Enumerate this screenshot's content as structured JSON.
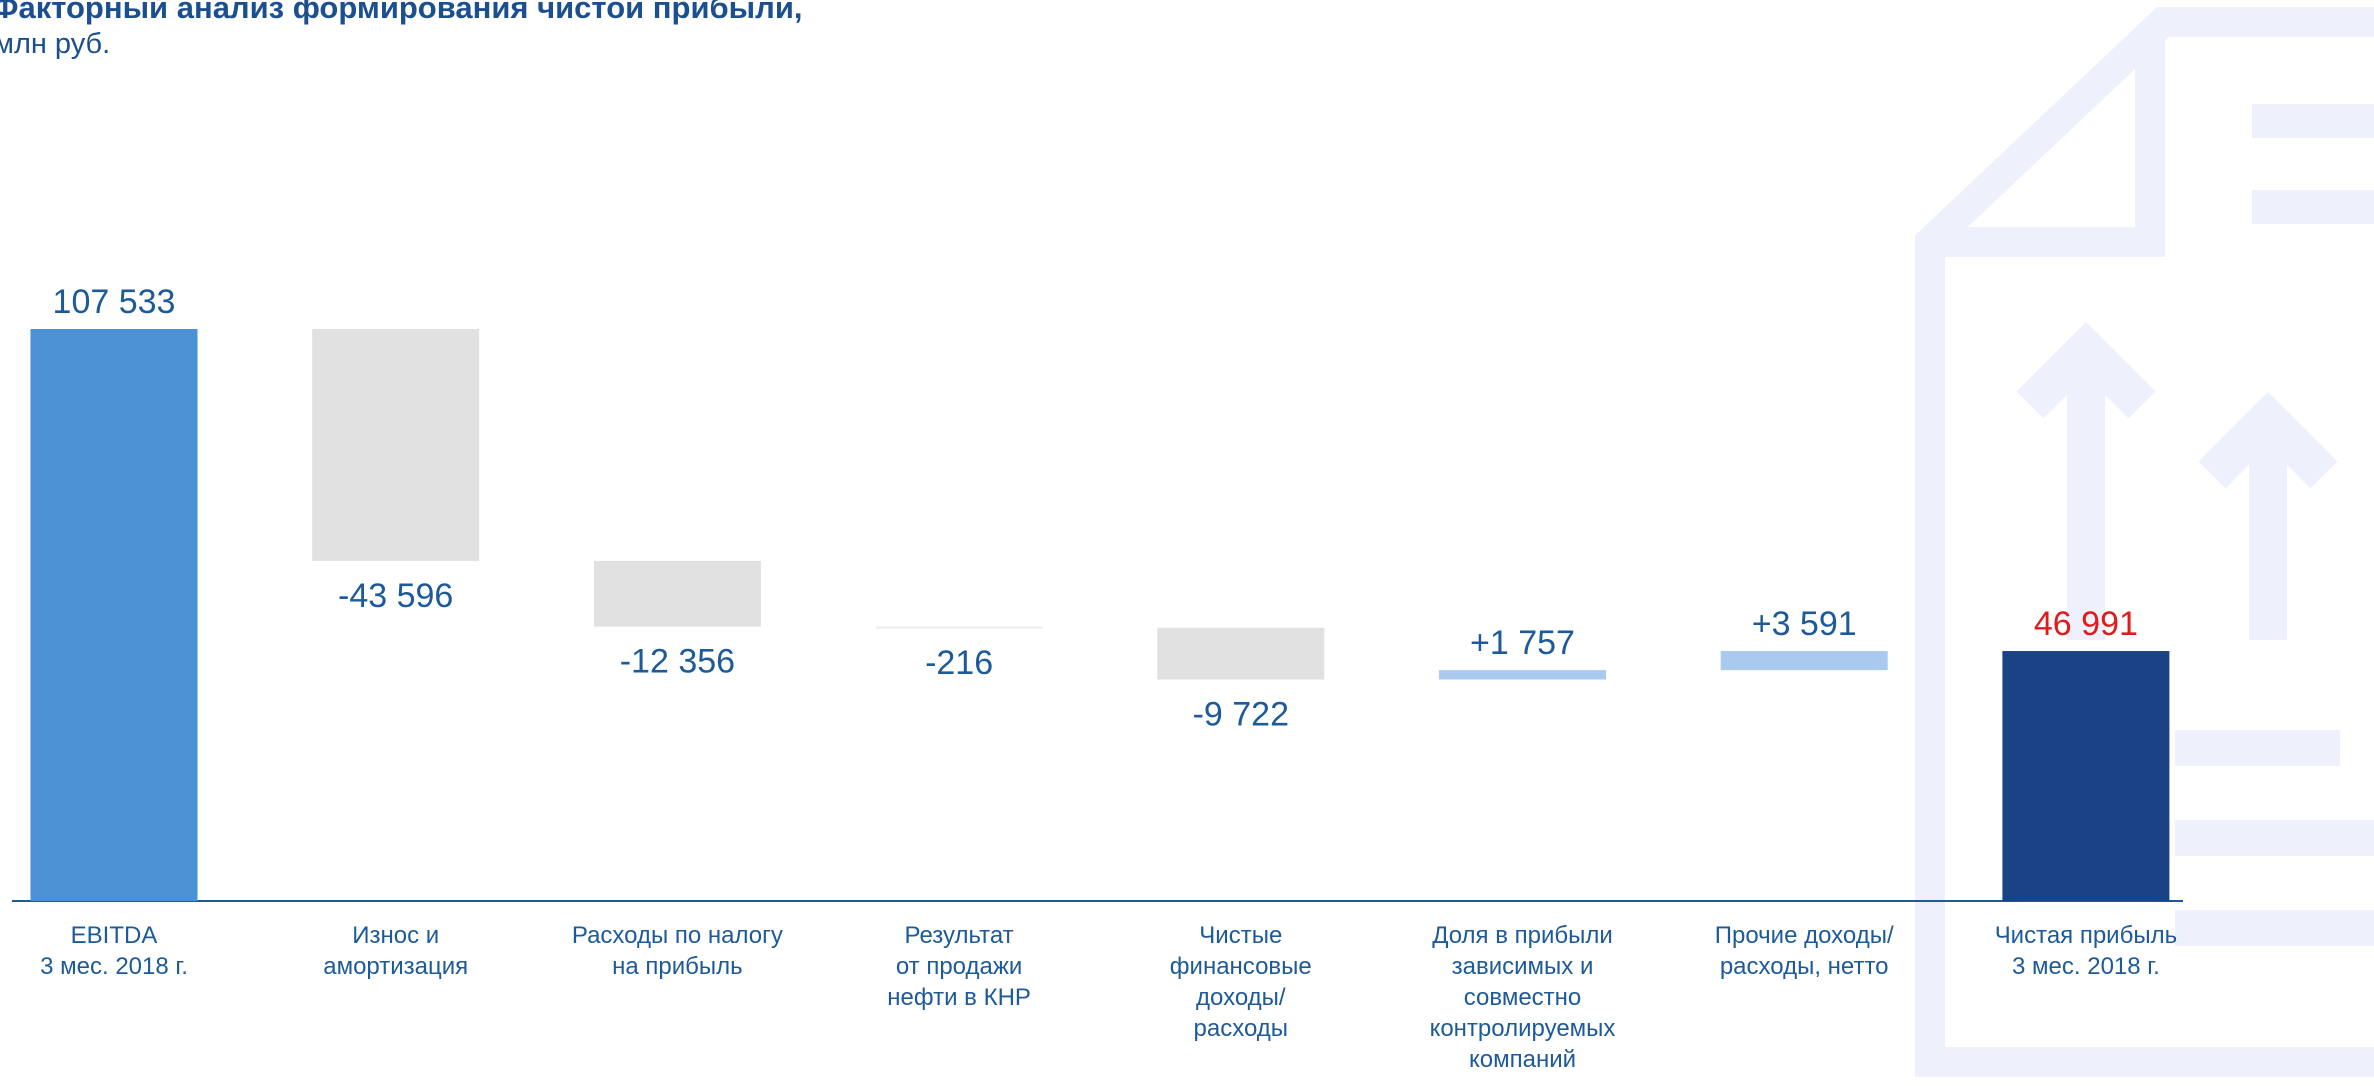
{
  "chart_data": {
    "type": "waterfall",
    "title": "Факторный анализ формирования чистой прибыли,",
    "subtitle": "млн руб.",
    "categories": [
      "EBITDA\n3 мес. 2018 г.",
      "Износ и\nамортизация",
      "Расходы по налогу\nна прибыль",
      "Результат\nот продажи\nнефти в КНР",
      "Чистые\nфинансовые\nдоходы/\nрасходы",
      "Доля в прибыли\nзависимых и\nсовместно\nконтролируемых\nкомпаний",
      "Прочие доходы/\nрасходы, нетто",
      "Чистая прибыль\n3 мес. 2018 г."
    ],
    "values": [
      107533,
      -43596,
      -12356,
      -216,
      -9722,
      1757,
      3591,
      46991
    ],
    "value_labels": [
      "107 533",
      "-43 596",
      "-12 356",
      "-216",
      "-9 722",
      "+1 757",
      "+3 591",
      "46 991"
    ],
    "colors": [
      "#4a92d3",
      "#e1e1e1",
      "#e1e1e1",
      "#ececec",
      "#e1e1e1",
      "#a9c9ee",
      "#a9c9ee",
      "#1a4284"
    ],
    "label_colors": [
      "#1d5a9a",
      "#1d5a9a",
      "#1d5a9a",
      "#1d5a9a",
      "#1d5a9a",
      "#1d5a9a",
      "#1d5a9a",
      "#e01b1b"
    ]
  }
}
